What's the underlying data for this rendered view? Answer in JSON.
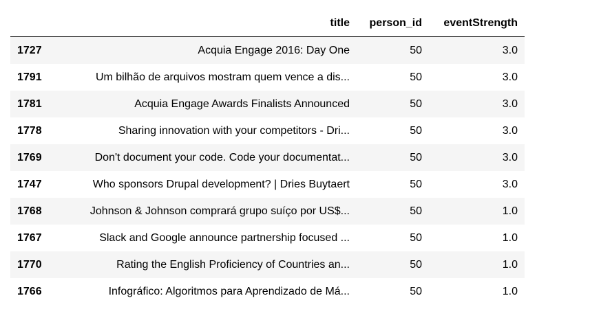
{
  "table": {
    "columns": [
      "title",
      "person_id",
      "eventStrength"
    ],
    "rows": [
      {
        "index": "1727",
        "title": "Acquia Engage 2016: Day One",
        "person_id": "50",
        "eventStrength": "3.0"
      },
      {
        "index": "1791",
        "title": "Um bilhão de arquivos mostram quem vence a dis...",
        "person_id": "50",
        "eventStrength": "3.0"
      },
      {
        "index": "1781",
        "title": "Acquia Engage Awards Finalists Announced",
        "person_id": "50",
        "eventStrength": "3.0"
      },
      {
        "index": "1778",
        "title": "Sharing innovation with your competitors - Dri...",
        "person_id": "50",
        "eventStrength": "3.0"
      },
      {
        "index": "1769",
        "title": "Don't document your code. Code your documentat...",
        "person_id": "50",
        "eventStrength": "3.0"
      },
      {
        "index": "1747",
        "title": "Who sponsors Drupal development? | Dries Buytaert",
        "person_id": "50",
        "eventStrength": "3.0"
      },
      {
        "index": "1768",
        "title": "Johnson & Johnson comprará grupo suíço por US$...",
        "person_id": "50",
        "eventStrength": "1.0"
      },
      {
        "index": "1767",
        "title": "Slack and Google announce partnership focused ...",
        "person_id": "50",
        "eventStrength": "1.0"
      },
      {
        "index": "1770",
        "title": "Rating the English Proficiency of Countries an...",
        "person_id": "50",
        "eventStrength": "1.0"
      },
      {
        "index": "1766",
        "title": "Infográfico: Algoritmos para Aprendizado de Má...",
        "person_id": "50",
        "eventStrength": "1.0"
      }
    ]
  }
}
